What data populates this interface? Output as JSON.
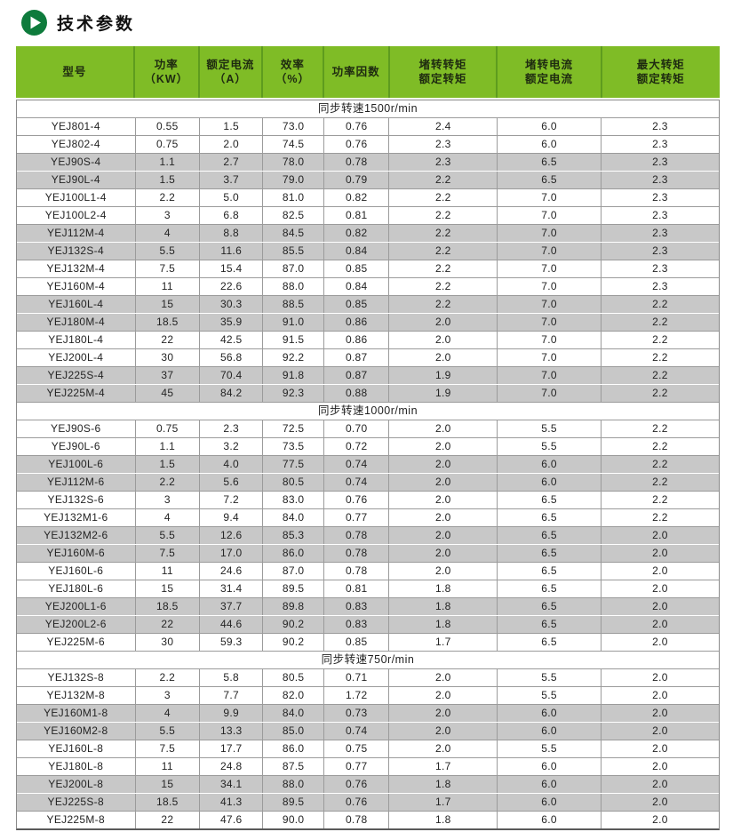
{
  "page": {
    "title": "技术参数"
  },
  "colors": {
    "header_green": "#7fbc26",
    "header_divider_green": "#5e9c1e",
    "icon_green": "#0e7b3c",
    "stripe_gray": "#c8c8c8",
    "border_gray": "#9b9b9b"
  },
  "table": {
    "columns": [
      {
        "id": "model",
        "width": "16.9%",
        "lines": [
          "型号"
        ]
      },
      {
        "id": "power",
        "width": "9.2%",
        "lines": [
          "功率",
          "（KW）"
        ]
      },
      {
        "id": "rated-current",
        "width": "9.0%",
        "lines": [
          "额定电流",
          "（A）"
        ]
      },
      {
        "id": "efficiency",
        "width": "8.7%",
        "lines": [
          "效率",
          "（%）"
        ]
      },
      {
        "id": "power-factor",
        "width": "9.3%",
        "lines": [
          "功率因数"
        ]
      },
      {
        "id": "locked-torque",
        "width": "15.4%",
        "lines": [
          "堵转转矩",
          "额定转矩"
        ]
      },
      {
        "id": "locked-current",
        "width": "14.8%",
        "lines": [
          "堵转电流",
          "额定电流"
        ]
      },
      {
        "id": "max-torque",
        "width": "16.7%",
        "lines": [
          "最大转矩",
          "额定转矩"
        ]
      }
    ],
    "sections": [
      {
        "label": "同步转速1500r/min",
        "rows": [
          [
            "YEJ801-4",
            "0.55",
            "1.5",
            "73.0",
            "0.76",
            "2.4",
            "6.0",
            "2.3"
          ],
          [
            "YEJ802-4",
            "0.75",
            "2.0",
            "74.5",
            "0.76",
            "2.3",
            "6.0",
            "2.3"
          ],
          [
            "YEJ90S-4",
            "1.1",
            "2.7",
            "78.0",
            "0.78",
            "2.3",
            "6.5",
            "2.3"
          ],
          [
            "YEJ90L-4",
            "1.5",
            "3.7",
            "79.0",
            "0.79",
            "2.2",
            "6.5",
            "2.3"
          ],
          [
            "YEJ100L1-4",
            "2.2",
            "5.0",
            "81.0",
            "0.82",
            "2.2",
            "7.0",
            "2.3"
          ],
          [
            "YEJ100L2-4",
            "3",
            "6.8",
            "82.5",
            "0.81",
            "2.2",
            "7.0",
            "2.3"
          ],
          [
            "YEJ112M-4",
            "4",
            "8.8",
            "84.5",
            "0.82",
            "2.2",
            "7.0",
            "2.3"
          ],
          [
            "YEJ132S-4",
            "5.5",
            "11.6",
            "85.5",
            "0.84",
            "2.2",
            "7.0",
            "2.3"
          ],
          [
            "YEJ132M-4",
            "7.5",
            "15.4",
            "87.0",
            "0.85",
            "2.2",
            "7.0",
            "2.3"
          ],
          [
            "YEJ160M-4",
            "11",
            "22.6",
            "88.0",
            "0.84",
            "2.2",
            "7.0",
            "2.3"
          ],
          [
            "YEJ160L-4",
            "15",
            "30.3",
            "88.5",
            "0.85",
            "2.2",
            "7.0",
            "2.2"
          ],
          [
            "YEJ180M-4",
            "18.5",
            "35.9",
            "91.0",
            "0.86",
            "2.0",
            "7.0",
            "2.2"
          ],
          [
            "YEJ180L-4",
            "22",
            "42.5",
            "91.5",
            "0.86",
            "2.0",
            "7.0",
            "2.2"
          ],
          [
            "YEJ200L-4",
            "30",
            "56.8",
            "92.2",
            "0.87",
            "2.0",
            "7.0",
            "2.2"
          ],
          [
            "YEJ225S-4",
            "37",
            "70.4",
            "91.8",
            "0.87",
            "1.9",
            "7.0",
            "2.2"
          ],
          [
            "YEJ225M-4",
            "45",
            "84.2",
            "92.3",
            "0.88",
            "1.9",
            "7.0",
            "2.2"
          ]
        ]
      },
      {
        "label": "同步转速1000r/min",
        "rows": [
          [
            "YEJ90S-6",
            "0.75",
            "2.3",
            "72.5",
            "0.70",
            "2.0",
            "5.5",
            "2.2"
          ],
          [
            "YEJ90L-6",
            "1.1",
            "3.2",
            "73.5",
            "0.72",
            "2.0",
            "5.5",
            "2.2"
          ],
          [
            "YEJ100L-6",
            "1.5",
            "4.0",
            "77.5",
            "0.74",
            "2.0",
            "6.0",
            "2.2"
          ],
          [
            "YEJ112M-6",
            "2.2",
            "5.6",
            "80.5",
            "0.74",
            "2.0",
            "6.0",
            "2.2"
          ],
          [
            "YEJ132S-6",
            "3",
            "7.2",
            "83.0",
            "0.76",
            "2.0",
            "6.5",
            "2.2"
          ],
          [
            "YEJ132M1-6",
            "4",
            "9.4",
            "84.0",
            "0.77",
            "2.0",
            "6.5",
            "2.2"
          ],
          [
            "YEJ132M2-6",
            "5.5",
            "12.6",
            "85.3",
            "0.78",
            "2.0",
            "6.5",
            "2.0"
          ],
          [
            "YEJ160M-6",
            "7.5",
            "17.0",
            "86.0",
            "0.78",
            "2.0",
            "6.5",
            "2.0"
          ],
          [
            "YEJ160L-6",
            "11",
            "24.6",
            "87.0",
            "0.78",
            "2.0",
            "6.5",
            "2.0"
          ],
          [
            "YEJ180L-6",
            "15",
            "31.4",
            "89.5",
            "0.81",
            "1.8",
            "6.5",
            "2.0"
          ],
          [
            "YEJ200L1-6",
            "18.5",
            "37.7",
            "89.8",
            "0.83",
            "1.8",
            "6.5",
            "2.0"
          ],
          [
            "YEJ200L2-6",
            "22",
            "44.6",
            "90.2",
            "0.83",
            "1.8",
            "6.5",
            "2.0"
          ],
          [
            "YEJ225M-6",
            "30",
            "59.3",
            "90.2",
            "0.85",
            "1.7",
            "6.5",
            "2.0"
          ]
        ]
      },
      {
        "label": "同步转速750r/min",
        "rows": [
          [
            "YEJ132S-8",
            "2.2",
            "5.8",
            "80.5",
            "0.71",
            "2.0",
            "5.5",
            "2.0"
          ],
          [
            "YEJ132M-8",
            "3",
            "7.7",
            "82.0",
            "1.72",
            "2.0",
            "5.5",
            "2.0"
          ],
          [
            "YEJ160M1-8",
            "4",
            "9.9",
            "84.0",
            "0.73",
            "2.0",
            "6.0",
            "2.0"
          ],
          [
            "YEJ160M2-8",
            "5.5",
            "13.3",
            "85.0",
            "0.74",
            "2.0",
            "6.0",
            "2.0"
          ],
          [
            "YEJ160L-8",
            "7.5",
            "17.7",
            "86.0",
            "0.75",
            "2.0",
            "5.5",
            "2.0"
          ],
          [
            "YEJ180L-8",
            "11",
            "24.8",
            "87.5",
            "0.77",
            "1.7",
            "6.0",
            "2.0"
          ],
          [
            "YEJ200L-8",
            "15",
            "34.1",
            "88.0",
            "0.76",
            "1.8",
            "6.0",
            "2.0"
          ],
          [
            "YEJ225S-8",
            "18.5",
            "41.3",
            "89.5",
            "0.76",
            "1.7",
            "6.0",
            "2.0"
          ],
          [
            "YEJ225M-8",
            "22",
            "47.6",
            "90.0",
            "0.78",
            "1.8",
            "6.0",
            "2.0"
          ]
        ]
      }
    ]
  }
}
